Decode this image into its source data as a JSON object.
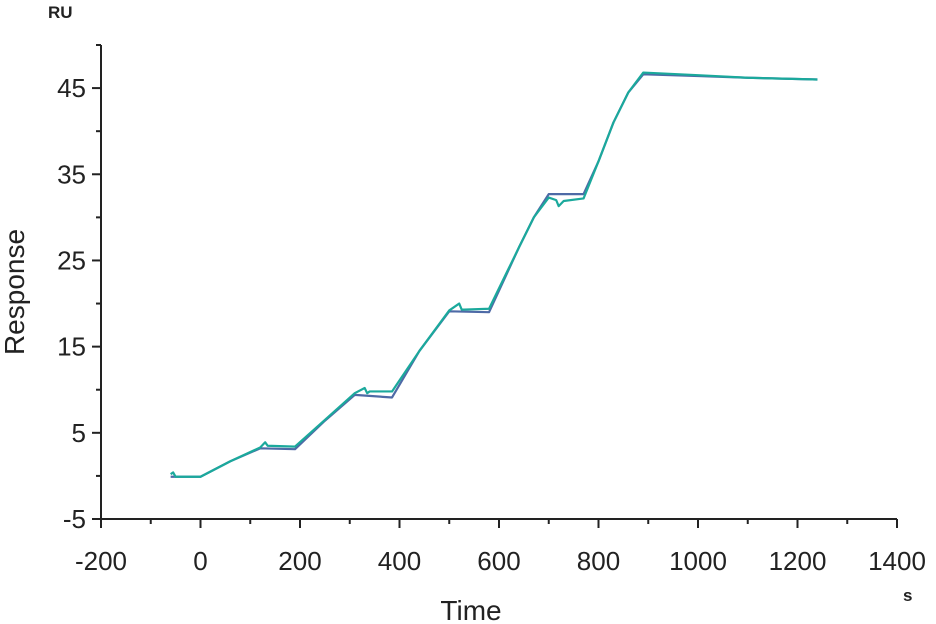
{
  "chart_data": {
    "type": "line",
    "y_unit": "RU",
    "x_unit": "s",
    "xlabel": "Time",
    "ylabel": "Response",
    "xlim": [
      -200,
      1400
    ],
    "xticks": [
      -200,
      0,
      200,
      400,
      600,
      800,
      1000,
      1200,
      1400
    ],
    "xminorticks": [
      -100,
      100,
      300,
      500,
      700,
      900,
      1100,
      1300
    ],
    "ylim": [
      -5,
      50
    ],
    "yticks": [
      -5,
      5,
      15,
      25,
      35,
      45
    ],
    "yminorticks": [
      0,
      10,
      20,
      30,
      40,
      50
    ],
    "series": [
      {
        "color": "#4e6aa6",
        "x": [
          -60,
          0,
          60,
          120,
          190,
          250,
          310,
          385,
          440,
          500,
          580,
          640,
          670,
          700,
          770,
          800,
          830,
          860,
          890,
          1000,
          1100,
          1240
        ],
        "values": [
          -0.1,
          -0.1,
          1.7,
          3.2,
          3.1,
          6.4,
          9.4,
          9.1,
          14.5,
          19.1,
          19.0,
          26.5,
          30.0,
          32.7,
          32.7,
          36.5,
          41.0,
          44.5,
          46.6,
          46.4,
          46.2,
          46.0
        ]
      },
      {
        "color": "#1ba99c",
        "x": [
          -60,
          -55,
          -50,
          0,
          60,
          120,
          130,
          135,
          190,
          250,
          310,
          330,
          335,
          340,
          385,
          440,
          500,
          520,
          525,
          530,
          580,
          640,
          670,
          700,
          715,
          720,
          730,
          770,
          800,
          830,
          860,
          890,
          1000,
          1100,
          1240
        ],
        "values": [
          0.2,
          0.4,
          -0.1,
          -0.1,
          1.7,
          3.3,
          3.9,
          3.5,
          3.4,
          6.5,
          9.6,
          10.2,
          9.6,
          9.8,
          9.8,
          14.5,
          19.2,
          20.0,
          19.3,
          19.3,
          19.4,
          26.5,
          30.0,
          32.3,
          32.0,
          31.3,
          31.9,
          32.2,
          36.5,
          41.0,
          44.5,
          46.8,
          46.5,
          46.2,
          46.0
        ]
      }
    ]
  }
}
